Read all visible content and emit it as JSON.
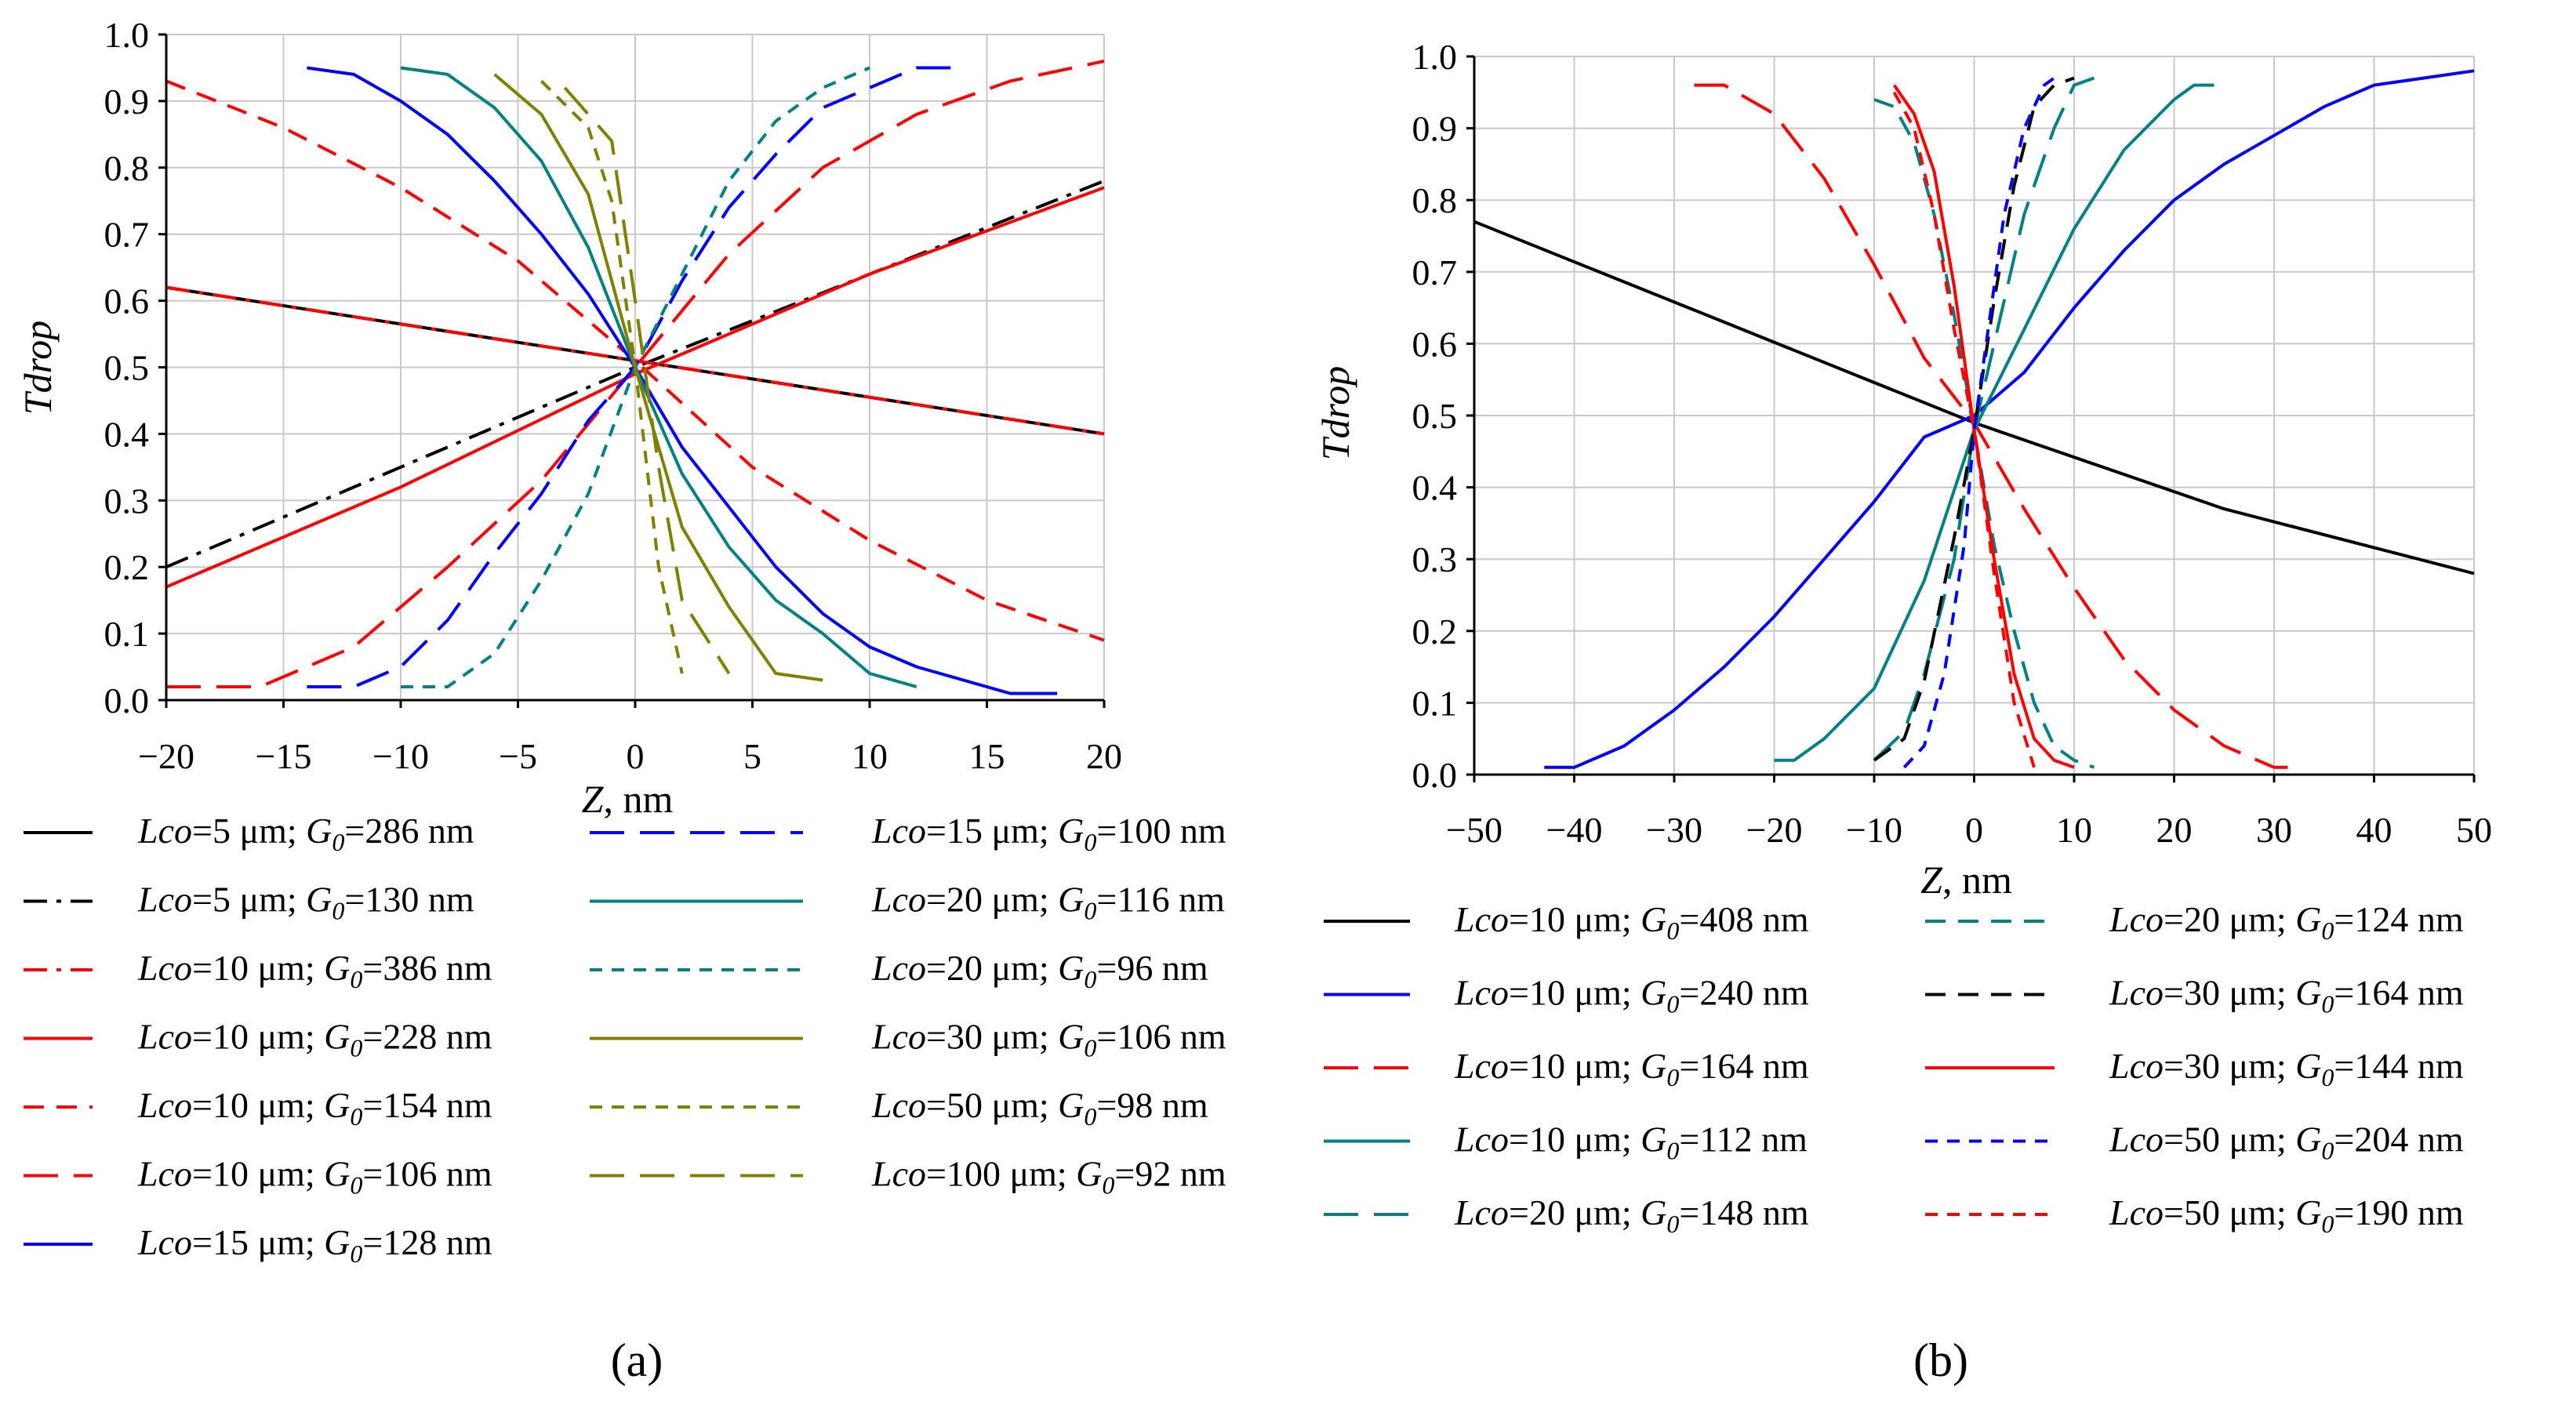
{
  "figure": {
    "panel_labels": [
      "(a)",
      "(b)"
    ]
  },
  "chart_data": [
    {
      "type": "line",
      "panel": "(a)",
      "xlabel": "Z, nm",
      "ylabel": "Tdrop",
      "xlim": [
        -20,
        20
      ],
      "ylim": [
        0.0,
        1.0
      ],
      "xticks": [
        -20,
        -15,
        -10,
        -5,
        0,
        5,
        10,
        15,
        20
      ],
      "xtick_labels": [
        "−20",
        "−15",
        "−10",
        "−5",
        "0",
        "5",
        "10",
        "15",
        "20"
      ],
      "yticks": [
        0.0,
        0.1,
        0.2,
        0.3,
        0.4,
        0.5,
        0.6,
        0.7,
        0.8,
        0.9,
        1.0
      ],
      "ytick_labels": [
        "0.0",
        "0.1",
        "0.2",
        "0.3",
        "0.4",
        "0.5",
        "0.6",
        "0.7",
        "0.8",
        "0.9",
        "1.0"
      ],
      "grid": true,
      "series": [
        {
          "name": "Lco=5 μm; G0=286 nm",
          "lco": "=5 μm; ",
          "g0": "=286 nm",
          "color": "#000000",
          "dash": "solid",
          "x": [
            -20,
            20
          ],
          "y": [
            0.62,
            0.4
          ]
        },
        {
          "name": "Lco=5 μm; G0=130 nm",
          "lco": "=5 μm; ",
          "g0": "=130 nm",
          "color": "#000000",
          "dash": "dashdot",
          "x": [
            -20,
            0,
            20
          ],
          "y": [
            0.2,
            0.5,
            0.78
          ]
        },
        {
          "name": "Lco=10 μm; G0=386 nm",
          "lco": "=10 μm; ",
          "g0": "=386 nm",
          "color": "#ff0000",
          "dash": "dashdot",
          "x": [
            -20,
            20
          ],
          "y": [
            0.62,
            0.4
          ]
        },
        {
          "name": "Lco=10 μm; G0=228 nm",
          "lco": "=10 μm; ",
          "g0": "=228 nm",
          "color": "#ff0000",
          "dash": "solid",
          "x": [
            -20,
            -10,
            0,
            10,
            20
          ],
          "y": [
            0.17,
            0.32,
            0.49,
            0.64,
            0.77
          ]
        },
        {
          "name": "Lco=10 μm; G0=154 nm",
          "lco": "=10 μm; ",
          "g0": "=154 nm",
          "color": "#ff0000",
          "dash": "dash",
          "x": [
            -20,
            -15,
            -10,
            -5,
            0,
            5,
            10,
            15,
            20
          ],
          "y": [
            0.93,
            0.86,
            0.77,
            0.66,
            0.51,
            0.35,
            0.24,
            0.15,
            0.09
          ]
        },
        {
          "name": "Lco=10 μm; G0=106 nm",
          "lco": "=10 μm; ",
          "g0": "=106 nm",
          "color": "#ff0000",
          "dash": "longdash",
          "x": [
            -20,
            -16,
            -12,
            -8,
            -4,
            0,
            4,
            8,
            12,
            16,
            20
          ],
          "y": [
            0.02,
            0.02,
            0.08,
            0.2,
            0.33,
            0.5,
            0.67,
            0.8,
            0.88,
            0.93,
            0.96
          ]
        },
        {
          "name": "Lco=15 μm; G0=128 nm",
          "lco": "=15 μm; ",
          "g0": "=128 nm",
          "color": "#0000ff",
          "dash": "solid",
          "x": [
            -14,
            -12,
            -10,
            -8,
            -6,
            -4,
            -2,
            0,
            2,
            4,
            6,
            8,
            10,
            12,
            14,
            16,
            18
          ],
          "y": [
            0.95,
            0.94,
            0.9,
            0.85,
            0.78,
            0.7,
            0.61,
            0.5,
            0.38,
            0.29,
            0.2,
            0.13,
            0.08,
            0.05,
            0.03,
            0.01,
            0.01
          ]
        },
        {
          "name": "Lco=15 μm; G0=100 nm",
          "lco": "=15 μm; ",
          "g0": "=100 nm",
          "color": "#0000ff",
          "dash": "longdash",
          "x": [
            -14,
            -12,
            -10,
            -8,
            -6,
            -4,
            -2,
            0,
            2,
            4,
            6,
            8,
            10,
            12,
            14
          ],
          "y": [
            0.02,
            0.02,
            0.05,
            0.12,
            0.22,
            0.31,
            0.42,
            0.5,
            0.63,
            0.74,
            0.82,
            0.89,
            0.92,
            0.95,
            0.95
          ]
        },
        {
          "name": "Lco=20 μm; G0=116 nm",
          "lco": "=20 μm; ",
          "g0": "=116 nm",
          "color": "#008080",
          "dash": "solid",
          "x": [
            -10,
            -8,
            -6,
            -4,
            -2,
            0,
            2,
            4,
            6,
            8,
            10,
            12
          ],
          "y": [
            0.95,
            0.94,
            0.89,
            0.81,
            0.68,
            0.5,
            0.34,
            0.23,
            0.15,
            0.1,
            0.04,
            0.02
          ]
        },
        {
          "name": "Lco=20 μm; G0=96 nm",
          "lco": "=20 μm; ",
          "g0": "=96 nm",
          "color": "#008080",
          "dash": "shortdash",
          "x": [
            -10,
            -8,
            -6,
            -4,
            -2,
            0,
            2,
            4,
            6,
            8,
            10
          ],
          "y": [
            0.02,
            0.02,
            0.07,
            0.18,
            0.31,
            0.5,
            0.64,
            0.78,
            0.87,
            0.92,
            0.95
          ]
        },
        {
          "name": "Lco=30 μm; G0=106 nm",
          "lco": "=30 μm; ",
          "g0": "=106 nm",
          "color": "#808000",
          "dash": "solid",
          "x": [
            -6,
            -4,
            -2,
            0,
            2,
            4,
            6,
            8
          ],
          "y": [
            0.94,
            0.88,
            0.76,
            0.5,
            0.26,
            0.14,
            0.04,
            0.03
          ]
        },
        {
          "name": "Lco=50 μm; G0=98 nm",
          "lco": "=50 μm; ",
          "g0": "=98 nm",
          "color": "#808000",
          "dash": "shortdash",
          "x": [
            -4,
            -2,
            -1,
            0,
            1,
            2
          ],
          "y": [
            0.93,
            0.86,
            0.75,
            0.5,
            0.2,
            0.04
          ]
        },
        {
          "name": "Lco=100 μm; G0=92 nm",
          "lco": "=100 μm; ",
          "g0": "=92 nm",
          "color": "#808000",
          "dash": "longdash",
          "x": [
            -3,
            -1,
            0,
            1,
            2,
            4
          ],
          "y": [
            0.92,
            0.84,
            0.6,
            0.35,
            0.15,
            0.04
          ]
        }
      ]
    },
    {
      "type": "line",
      "panel": "(b)",
      "xlabel": "Z, nm",
      "ylabel": "Tdrop",
      "xlim": [
        -50,
        50
      ],
      "ylim": [
        0.0,
        1.0
      ],
      "xticks": [
        -50,
        -40,
        -30,
        -20,
        -10,
        0,
        10,
        20,
        30,
        40,
        50
      ],
      "xtick_labels": [
        "−50",
        "−40",
        "−30",
        "−20",
        "−10",
        "0",
        "10",
        "20",
        "30",
        "40",
        "50"
      ],
      "yticks": [
        0.0,
        0.1,
        0.2,
        0.3,
        0.4,
        0.5,
        0.6,
        0.7,
        0.8,
        0.9,
        1.0
      ],
      "ytick_labels": [
        "0.0",
        "0.1",
        "0.2",
        "0.3",
        "0.4",
        "0.5",
        "0.6",
        "0.7",
        "0.8",
        "0.9",
        "1.0"
      ],
      "grid": true,
      "series": [
        {
          "name": "Lco=10 μm; G0=408 nm",
          "lco": "=10 μm; ",
          "g0": "=408 nm",
          "color": "#000000",
          "dash": "solid",
          "x": [
            -50,
            -25,
            0,
            25,
            50
          ],
          "y": [
            0.77,
            0.63,
            0.49,
            0.37,
            0.28
          ]
        },
        {
          "name": "Lco=10 μm; G0=240 nm",
          "lco": "=10 μm; ",
          "g0": "=240 nm",
          "color": "#0000ff",
          "dash": "solid",
          "x": [
            -43,
            -40,
            -35,
            -30,
            -25,
            -20,
            -15,
            -10,
            -5,
            0,
            5,
            10,
            15,
            20,
            25,
            30,
            35,
            40,
            45,
            50
          ],
          "y": [
            0.01,
            0.01,
            0.04,
            0.09,
            0.15,
            0.22,
            0.3,
            0.38,
            0.47,
            0.5,
            0.56,
            0.65,
            0.73,
            0.8,
            0.85,
            0.89,
            0.93,
            0.96,
            0.97,
            0.98
          ]
        },
        {
          "name": "Lco=10 μm; G0=164 nm",
          "lco": "=10 μm; ",
          "g0": "=164 nm",
          "color": "#ff0000",
          "dash": "longdash",
          "x": [
            -28,
            -25,
            -20,
            -15,
            -10,
            -5,
            0,
            5,
            10,
            15,
            20,
            25,
            30,
            32
          ],
          "y": [
            0.96,
            0.96,
            0.92,
            0.83,
            0.71,
            0.58,
            0.49,
            0.37,
            0.26,
            0.16,
            0.09,
            0.04,
            0.01,
            0.01
          ]
        },
        {
          "name": "Lco=10 μm; G0=112 nm",
          "lco": "=10 μm; ",
          "g0": "=112 nm",
          "color": "#008080",
          "dash": "solid",
          "x": [
            -20,
            -18,
            -15,
            -10,
            -5,
            0,
            5,
            10,
            15,
            20,
            22,
            24
          ],
          "y": [
            0.02,
            0.02,
            0.05,
            0.12,
            0.27,
            0.48,
            0.62,
            0.76,
            0.87,
            0.94,
            0.96,
            0.96
          ]
        },
        {
          "name": "Lco=20 μm; G0=148 nm",
          "lco": "=20 μm; ",
          "g0": "=148 nm",
          "color": "#008080",
          "dash": "longdash",
          "x": [
            -10,
            -7,
            -5,
            -2,
            0,
            3,
            5,
            8,
            10,
            12
          ],
          "y": [
            0.02,
            0.06,
            0.14,
            0.3,
            0.48,
            0.66,
            0.78,
            0.9,
            0.96,
            0.97
          ]
        },
        {
          "name": "Lco=20 μm; G0=124 nm",
          "lco": "=20 μm; ",
          "g0": "=124 nm",
          "color": "#008080",
          "dash": "dash",
          "x": [
            -10,
            -8,
            -6,
            -4,
            -2,
            0,
            2,
            4,
            6,
            8,
            10,
            12
          ],
          "y": [
            0.94,
            0.93,
            0.88,
            0.78,
            0.64,
            0.48,
            0.32,
            0.2,
            0.1,
            0.04,
            0.02,
            0.01
          ]
        },
        {
          "name": "Lco=30 μm; G0=164 nm",
          "lco": "=30 μm; ",
          "g0": "=164 nm",
          "color": "#000000",
          "dash": "dash",
          "x": [
            -10,
            -7,
            -5,
            -2,
            0,
            2,
            4,
            6,
            8,
            10
          ],
          "y": [
            0.02,
            0.05,
            0.13,
            0.33,
            0.48,
            0.66,
            0.82,
            0.93,
            0.96,
            0.97
          ]
        },
        {
          "name": "Lco=30 μm; G0=144 nm",
          "lco": "=30 μm; ",
          "g0": "=144 nm",
          "color": "#ff0000",
          "dash": "solid",
          "x": [
            -8,
            -6,
            -4,
            -2,
            0,
            2,
            4,
            6,
            8,
            10
          ],
          "y": [
            0.96,
            0.92,
            0.84,
            0.68,
            0.48,
            0.3,
            0.14,
            0.05,
            0.02,
            0.01
          ]
        },
        {
          "name": "Lco=50 μm; G0=204 nm",
          "lco": "=50 μm; ",
          "g0": "=204 nm",
          "color": "#0000ff",
          "dash": "shortdash",
          "x": [
            -7,
            -5,
            -3,
            -1,
            0,
            1,
            3,
            5,
            7,
            8
          ],
          "y": [
            0.01,
            0.04,
            0.14,
            0.32,
            0.48,
            0.58,
            0.78,
            0.9,
            0.96,
            0.97
          ]
        },
        {
          "name": "Lco=50 μm; G0=190 nm",
          "lco": "=50 μm; ",
          "g0": "=190 nm",
          "color": "#ff0000",
          "dash": "shortdash",
          "x": [
            -8,
            -6,
            -4,
            -2,
            0,
            2,
            4,
            6
          ],
          "y": [
            0.95,
            0.9,
            0.78,
            0.62,
            0.48,
            0.28,
            0.1,
            0.01
          ]
        }
      ]
    }
  ]
}
